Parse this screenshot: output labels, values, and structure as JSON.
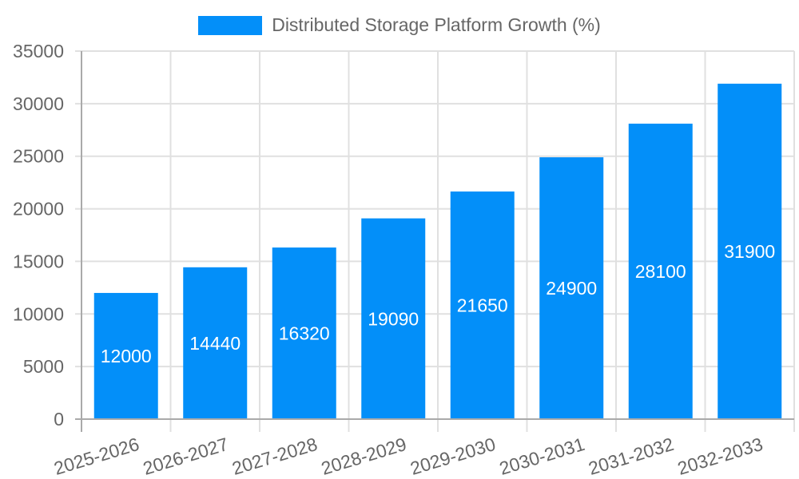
{
  "chart_data": {
    "type": "bar",
    "title": "",
    "legend": [
      "Distributed Storage Platform Growth (%)"
    ],
    "legend_position": "top",
    "categories": [
      "2025-2026",
      "2026-2027",
      "2027-2028",
      "2028-2029",
      "2029-2030",
      "2030-2031",
      "2031-2032",
      "2032-2033"
    ],
    "series": [
      {
        "name": "Distributed Storage Platform Growth (%)",
        "values": [
          12000,
          14440,
          16320,
          19090,
          21650,
          24900,
          28100,
          31900
        ],
        "color": "#038ff9"
      }
    ],
    "xlabel": "",
    "ylabel": "",
    "ylim": [
      0,
      35000
    ],
    "yticks": [
      0,
      5000,
      10000,
      15000,
      20000,
      25000,
      30000,
      35000
    ],
    "grid": true,
    "data_labels": true
  },
  "legend": {
    "label": "Distributed Storage Platform Growth (%)"
  }
}
